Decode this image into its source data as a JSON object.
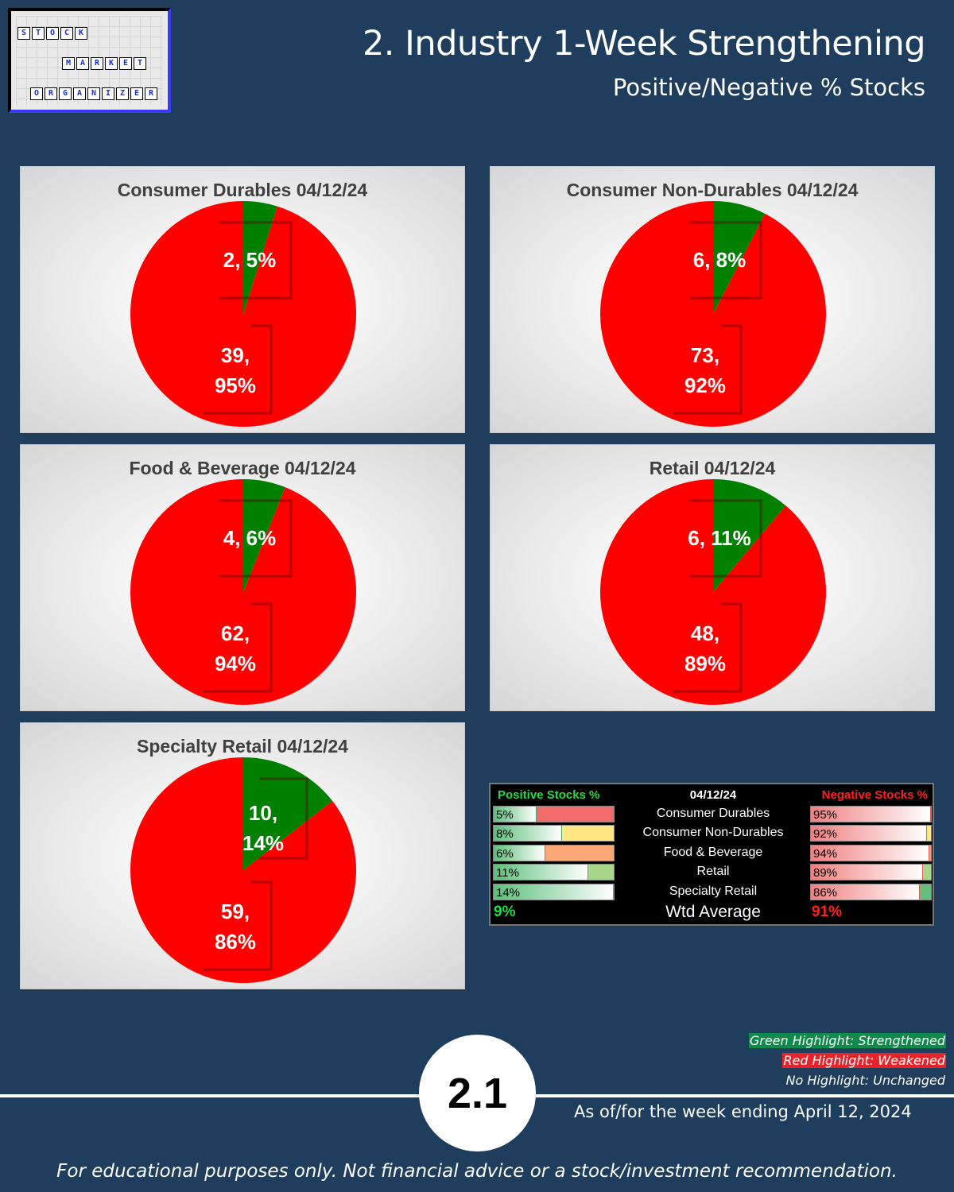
{
  "logo": {
    "row1": [
      "S",
      "T",
      "O",
      "C",
      "K"
    ],
    "row2": [
      "M",
      "A",
      "R",
      "K",
      "E",
      "T"
    ],
    "row3": [
      "O",
      "R",
      "G",
      "A",
      "N",
      "I",
      "Z",
      "E",
      "R"
    ]
  },
  "header": {
    "title": "2. Industry 1-Week Strengthening",
    "subtitle": "Positive/Negative % Stocks"
  },
  "colors": {
    "positive": "#008000",
    "negative": "#ff0000",
    "background": "#1f3d5c"
  },
  "chart_data": [
    {
      "type": "pie",
      "title": "Consumer Durables 04/12/24",
      "categories": [
        "Positive",
        "Negative"
      ],
      "values": [
        2,
        39
      ],
      "percents": [
        5,
        95
      ],
      "labels": [
        "2, 5%",
        "39, 95%"
      ]
    },
    {
      "type": "pie",
      "title": "Consumer Non-Durables 04/12/24",
      "categories": [
        "Positive",
        "Negative"
      ],
      "values": [
        6,
        73
      ],
      "percents": [
        8,
        92
      ],
      "labels": [
        "6, 8%",
        "73, 92%"
      ]
    },
    {
      "type": "pie",
      "title": "Food & Beverage 04/12/24",
      "categories": [
        "Positive",
        "Negative"
      ],
      "values": [
        4,
        62
      ],
      "percents": [
        6,
        94
      ],
      "labels": [
        "4, 6%",
        "62, 94%"
      ]
    },
    {
      "type": "pie",
      "title": "Retail 04/12/24",
      "categories": [
        "Positive",
        "Negative"
      ],
      "values": [
        6,
        48
      ],
      "percents": [
        11,
        89
      ],
      "labels": [
        "6, 11%",
        "48, 89%"
      ]
    },
    {
      "type": "pie",
      "title": "Specialty Retail 04/12/24",
      "categories": [
        "Positive",
        "Negative"
      ],
      "values": [
        10,
        59
      ],
      "percents": [
        14,
        86
      ],
      "labels": [
        "10, 14%",
        "59, 86%"
      ]
    }
  ],
  "summary": {
    "pos_header": "Positive Stocks %",
    "date_header": "04/12/24",
    "neg_header": "Negative Stocks %",
    "rows": [
      {
        "pos": "5%",
        "pos_frac": 0.05,
        "name": "Consumer Durables",
        "neg": "95%",
        "neg_frac": 0.95,
        "pos_bg": "#f26b6b",
        "neg_bg": "#f26b6b"
      },
      {
        "pos": "8%",
        "pos_frac": 0.08,
        "name": "Consumer Non-Durables",
        "neg": "92%",
        "neg_frac": 0.92,
        "pos_bg": "#ffe680",
        "neg_bg": "#ffe680"
      },
      {
        "pos": "6%",
        "pos_frac": 0.06,
        "name": "Food & Beverage",
        "neg": "94%",
        "neg_frac": 0.94,
        "pos_bg": "#fca774",
        "neg_bg": "#fca774"
      },
      {
        "pos": "11%",
        "pos_frac": 0.11,
        "name": "Retail",
        "neg": "89%",
        "neg_frac": 0.89,
        "pos_bg": "#a8d68a",
        "neg_bg": "#a8d68a"
      },
      {
        "pos": "14%",
        "pos_frac": 0.14,
        "name": "Specialty Retail",
        "neg": "86%",
        "neg_frac": 0.86,
        "pos_bg": "#63be7b",
        "neg_bg": "#63be7b"
      }
    ],
    "avg_pos": "9%",
    "avg_label": "Wtd Average",
    "avg_neg": "91%"
  },
  "legend": {
    "green": "Green Highlight: Strengthened",
    "red": "Red Highlight: Weakened",
    "none": "No Highlight: Unchanged"
  },
  "footer": {
    "badge": "2.1",
    "as_of": "As of/for the week ending April 12, 2024",
    "disclaimer": "For educational purposes only. Not financial advice or a stock/investment recommendation."
  }
}
